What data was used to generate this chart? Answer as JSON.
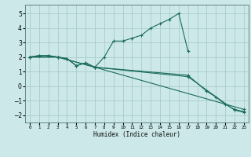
{
  "xlabel": "Humidex (Indice chaleur)",
  "bg_color": "#cce8e8",
  "grid_color": "#aacccc",
  "line_color": "#1a6b5a",
  "xlim": [
    -0.5,
    23.5
  ],
  "ylim": [
    -2.5,
    5.6
  ],
  "xticks": [
    0,
    1,
    2,
    3,
    4,
    5,
    6,
    7,
    8,
    9,
    10,
    11,
    12,
    13,
    14,
    15,
    16,
    17,
    18,
    19,
    20,
    21,
    22,
    23
  ],
  "yticks": [
    -2,
    -1,
    0,
    1,
    2,
    3,
    4,
    5
  ],
  "line1": {
    "x": [
      0,
      1,
      2,
      3,
      4,
      5,
      6,
      7,
      8,
      9,
      10,
      11,
      12,
      13,
      14,
      15,
      16,
      17
    ],
    "y": [
      2.0,
      2.1,
      2.1,
      2.0,
      1.9,
      1.4,
      1.6,
      1.3,
      2.0,
      3.1,
      3.1,
      3.3,
      3.5,
      4.0,
      4.3,
      4.6,
      5.0,
      2.4
    ]
  },
  "line2": {
    "x": [
      0,
      1,
      2,
      3,
      4,
      5,
      6,
      7,
      17,
      19,
      20,
      21,
      22,
      23
    ],
    "y": [
      2.0,
      2.1,
      2.1,
      2.0,
      1.9,
      1.4,
      1.6,
      1.3,
      0.75,
      -0.35,
      -0.75,
      -1.25,
      -1.6,
      -1.75
    ]
  },
  "line3": {
    "x": [
      0,
      3,
      7,
      17,
      22,
      23
    ],
    "y": [
      2.0,
      2.0,
      1.3,
      0.65,
      -1.65,
      -1.8
    ]
  },
  "line4": {
    "x": [
      0,
      3,
      7,
      23
    ],
    "y": [
      2.0,
      2.0,
      1.3,
      -1.6
    ]
  }
}
